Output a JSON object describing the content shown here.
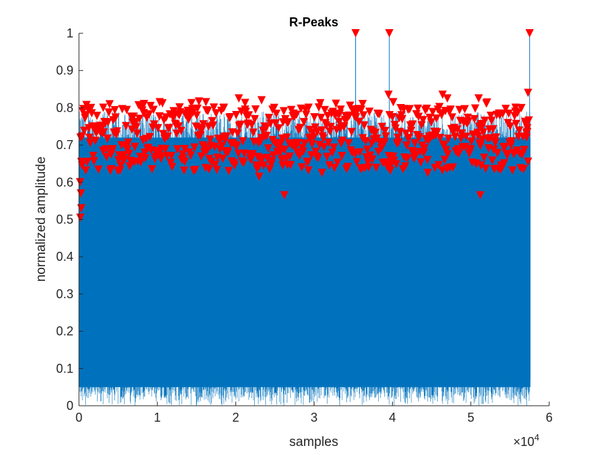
{
  "chart_data": {
    "type": "line",
    "title": "R-Peaks",
    "xlabel": "samples",
    "ylabel": "normalized amplitude",
    "xlim": [
      0,
      60000
    ],
    "ylim": [
      0,
      1
    ],
    "x_ticks": [
      0,
      10000,
      20000,
      30000,
      40000,
      50000,
      60000
    ],
    "x_tick_labels": [
      "0",
      "1",
      "2",
      "3",
      "4",
      "5",
      "6"
    ],
    "x_exponent_label": "×10",
    "x_exponent_power": "4",
    "y_ticks": [
      0,
      0.1,
      0.2,
      0.3,
      0.4,
      0.5,
      0.6,
      0.7,
      0.8,
      0.9,
      1
    ],
    "y_tick_labels": [
      "0",
      "0.1",
      "0.2",
      "0.3",
      "0.4",
      "0.5",
      "0.6",
      "0.7",
      "0.8",
      "0.9",
      "1"
    ],
    "grid": false,
    "colors": {
      "signal": "#0072BD",
      "peaks": "#FF0000",
      "axes": "#262626"
    },
    "series": [
      {
        "type": "line",
        "x_range": [
          0,
          57600
        ],
        "envelope_typical": [
          0.05,
          0.72
        ],
        "spikes": [
          {
            "x": 35300,
            "y": 1.0
          },
          {
            "x": 39600,
            "y": 1.0
          },
          {
            "x": 57500,
            "y": 1.0
          }
        ]
      },
      {
        "type": "scatter",
        "marker": "downward-triangle",
        "points": [
          {
            "x": 35300,
            "y": 1.0
          },
          {
            "x": 39600,
            "y": 1.0
          },
          {
            "x": 57500,
            "y": 1.0
          },
          {
            "x": 200,
            "y": 0.72
          },
          {
            "x": 150,
            "y": 0.6
          },
          {
            "x": 250,
            "y": 0.57
          },
          {
            "x": 300,
            "y": 0.53
          },
          {
            "x": 180,
            "y": 0.505
          },
          {
            "x": 400,
            "y": 0.645
          },
          {
            "x": 900,
            "y": 0.78
          },
          {
            "x": 3100,
            "y": 0.8
          },
          {
            "x": 4100,
            "y": 0.635
          },
          {
            "x": 8300,
            "y": 0.81
          },
          {
            "x": 10300,
            "y": 0.815
          },
          {
            "x": 12800,
            "y": 0.78
          },
          {
            "x": 13500,
            "y": 0.655
          },
          {
            "x": 16200,
            "y": 0.815
          },
          {
            "x": 16600,
            "y": 0.635
          },
          {
            "x": 18500,
            "y": 0.8
          },
          {
            "x": 20400,
            "y": 0.825
          },
          {
            "x": 21200,
            "y": 0.795
          },
          {
            "x": 23000,
            "y": 0.615
          },
          {
            "x": 23300,
            "y": 0.82
          },
          {
            "x": 24700,
            "y": 0.795
          },
          {
            "x": 26000,
            "y": 0.645
          },
          {
            "x": 26200,
            "y": 0.565
          },
          {
            "x": 26600,
            "y": 0.76
          },
          {
            "x": 29300,
            "y": 0.8
          },
          {
            "x": 31000,
            "y": 0.625
          },
          {
            "x": 33400,
            "y": 0.795
          },
          {
            "x": 36200,
            "y": 0.81
          },
          {
            "x": 39500,
            "y": 0.835
          },
          {
            "x": 40100,
            "y": 0.815
          },
          {
            "x": 42000,
            "y": 0.795
          },
          {
            "x": 44500,
            "y": 0.625
          },
          {
            "x": 46400,
            "y": 0.835
          },
          {
            "x": 47000,
            "y": 0.825
          },
          {
            "x": 51000,
            "y": 0.825
          },
          {
            "x": 51200,
            "y": 0.565
          },
          {
            "x": 51300,
            "y": 0.645
          },
          {
            "x": 53000,
            "y": 0.635
          },
          {
            "x": 55700,
            "y": 0.8
          },
          {
            "x": 57300,
            "y": 0.84
          },
          {
            "x": 57200,
            "y": 0.745
          },
          {
            "x": 57100,
            "y": 0.72
          }
        ],
        "dense_band": [
          0.63,
          0.82
        ]
      }
    ]
  }
}
